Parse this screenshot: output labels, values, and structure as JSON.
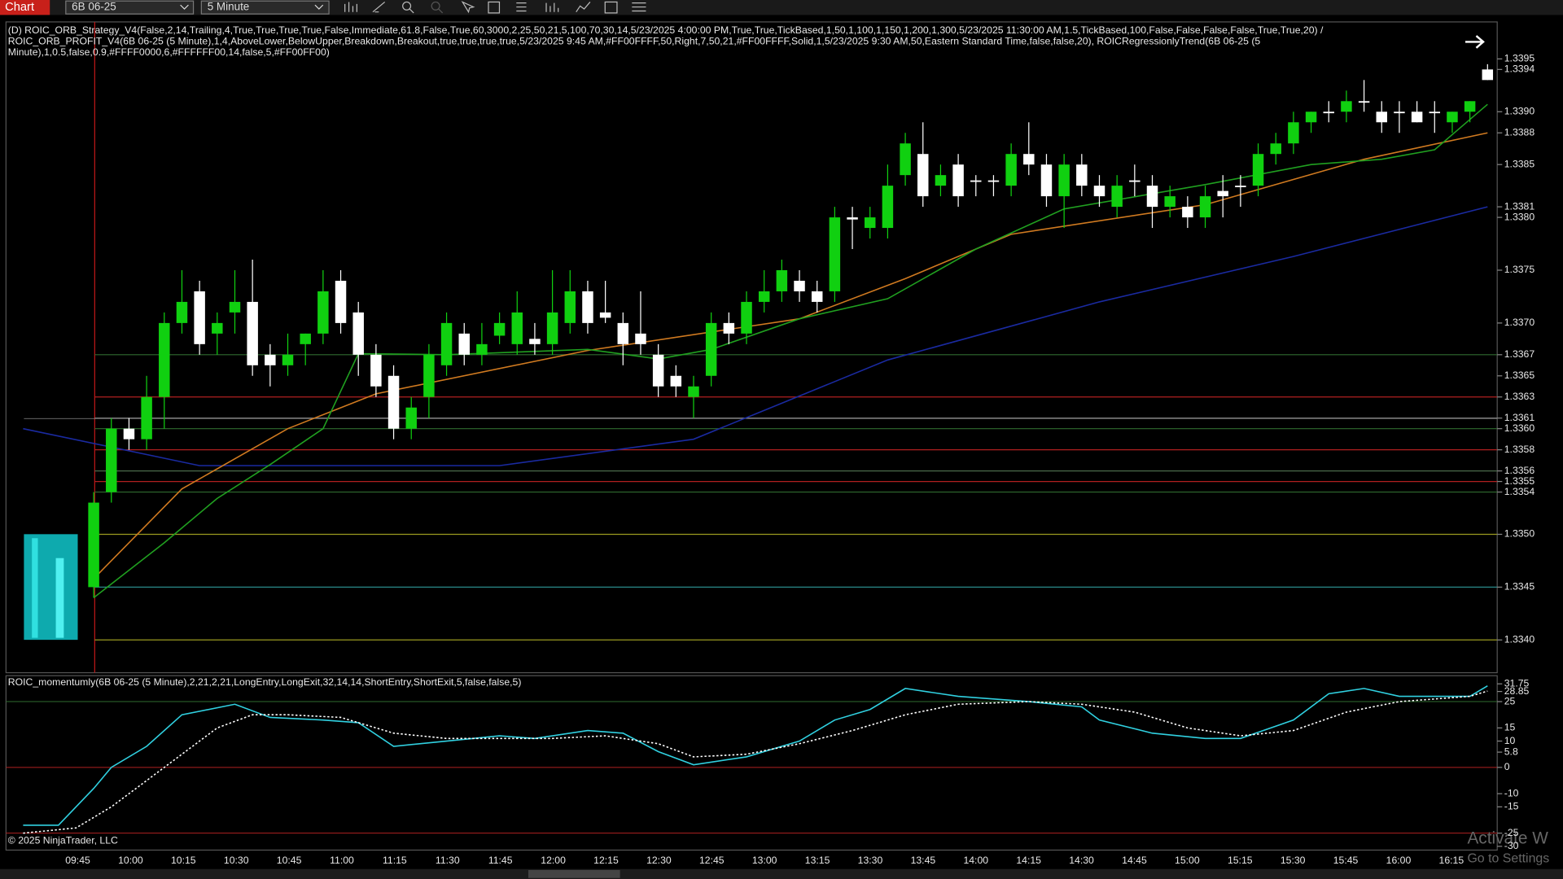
{
  "toolbar": {
    "tab": "Chart",
    "instrument": "6B 06-25",
    "interval": "5 Minute"
  },
  "price_panel": {
    "indicator_lines": [
      "(D) ROIC_ORB_Strategy_V4(False,2,14,Trailing,4,True,True,True,True,False,Immediate,61.8,False,True,60,3000,2,25,50,21,5,100,70,30,14,5/23/2025 4:00:00 PM,True,True,TickBased,1,50,1,100,1,150,1,200,1,300,5/23/2025 11:30:00 AM,1.5,TickBased,100,False,False,False,False,True,True,20) /",
      "ROIC_ORB_PROFIT_V4(6B 06-25 (5 Minute),1,4,AboveLower,BelowUpper,Breakdown,Breakout,true,true,true,true,5/23/2025 9:45 AM,#FF00FFFF,50,Right,7,50,21,#FF00FFFF,Solid,1,5/23/2025 9:30 AM,50,Eastern Standard Time,false,false,20), ROICRegressionlyTrend(6B 06-25 (5",
      "Minute),1,0.5,false,0.9,#FFFF0000,6,#FFFFFF00,14,false,5,#FF00FF00)"
    ],
    "ylim": [
      1.33369,
      1.33985
    ],
    "yticks": [
      1.3395,
      1.3394,
      {
        "value": 1.339,
        "label": "1.3390"
      },
      1.3388,
      1.3385,
      1.3381,
      {
        "value": 1.338,
        "label": "1.3380"
      },
      1.3375,
      {
        "value": 1.337,
        "label": "1.3370"
      },
      1.3367,
      1.3365,
      1.3363,
      1.3361,
      {
        "value": 1.336,
        "label": "1.3360"
      },
      1.3358,
      1.3356,
      1.3355,
      1.3354,
      {
        "value": 1.335,
        "label": "1.3350"
      },
      1.3345,
      {
        "value": 1.334,
        "label": "1.3340"
      }
    ],
    "levels": [
      {
        "value": 1.3367,
        "color": "#2f6b2f"
      },
      {
        "value": 1.3363,
        "color": "#b02020"
      },
      {
        "value": 1.3361,
        "color": "#8a8a8a"
      },
      {
        "value": 1.336,
        "color": "#2f6b2f"
      },
      {
        "value": 1.3358,
        "color": "#b02020"
      },
      {
        "value": 1.3356,
        "color": "#4a6a4a"
      },
      {
        "value": 1.3355,
        "color": "#b02020"
      },
      {
        "value": 1.3354,
        "color": "#2f6b2f"
      },
      {
        "value": 1.335,
        "color": "#9a9a20"
      },
      {
        "value": 1.3345,
        "color": "#2a8a8a"
      },
      {
        "value": 1.334,
        "color": "#9a9a20"
      }
    ],
    "up_color": "#10d010",
    "down_color": "#ffffff",
    "candles": [
      [
        1.3345,
        1.3354,
        1.3344,
        1.3353
      ],
      [
        1.3354,
        1.3361,
        1.3353,
        1.336
      ],
      [
        1.336,
        1.3361,
        1.3358,
        1.3359
      ],
      [
        1.3359,
        1.3365,
        1.3358,
        1.3363
      ],
      [
        1.3363,
        1.3371,
        1.336,
        1.337
      ],
      [
        1.337,
        1.3375,
        1.3369,
        1.3372
      ],
      [
        1.3373,
        1.3374,
        1.3367,
        1.3368
      ],
      [
        1.3369,
        1.3371,
        1.3367,
        1.337
      ],
      [
        1.3371,
        1.3375,
        1.3369,
        1.3372
      ],
      [
        1.3372,
        1.3376,
        1.3365,
        1.3366
      ],
      [
        1.3367,
        1.3368,
        1.3364,
        1.3366
      ],
      [
        1.3366,
        1.3369,
        1.3365,
        1.3367
      ],
      [
        1.3368,
        1.3369,
        1.3366,
        1.3369
      ],
      [
        1.3369,
        1.3375,
        1.3368,
        1.3373
      ],
      [
        1.3374,
        1.3375,
        1.3369,
        1.337
      ],
      [
        1.3371,
        1.3372,
        1.3365,
        1.3367
      ],
      [
        1.3367,
        1.3368,
        1.3363,
        1.3364
      ],
      [
        1.3365,
        1.3366,
        1.3359,
        1.336
      ],
      [
        1.336,
        1.3363,
        1.3359,
        1.3362
      ],
      [
        1.3363,
        1.3368,
        1.3361,
        1.3367
      ],
      [
        1.3366,
        1.3371,
        1.3365,
        1.337
      ],
      [
        1.3369,
        1.337,
        1.3366,
        1.3367
      ],
      [
        1.3367,
        1.337,
        1.3366,
        1.3368
      ],
      [
        1.33688,
        1.3371,
        1.3368,
        1.337
      ],
      [
        1.3368,
        1.3373,
        1.3367,
        1.3371
      ],
      [
        1.33685,
        1.337,
        1.3367,
        1.3368
      ],
      [
        1.3368,
        1.3375,
        1.3367,
        1.3371
      ],
      [
        1.337,
        1.3375,
        1.3369,
        1.3373
      ],
      [
        1.3373,
        1.3374,
        1.3369,
        1.337
      ],
      [
        1.3371,
        1.3374,
        1.337,
        1.33705
      ],
      [
        1.337,
        1.3371,
        1.3366,
        1.3368
      ],
      [
        1.3369,
        1.3373,
        1.3367,
        1.3368
      ],
      [
        1.3367,
        1.3368,
        1.3363,
        1.3364
      ],
      [
        1.3365,
        1.3366,
        1.3363,
        1.3364
      ],
      [
        1.3363,
        1.3365,
        1.3361,
        1.3364
      ],
      [
        1.3365,
        1.3371,
        1.3364,
        1.337
      ],
      [
        1.337,
        1.3371,
        1.3368,
        1.3369
      ],
      [
        1.3369,
        1.3373,
        1.3368,
        1.3372
      ],
      [
        1.3372,
        1.3375,
        1.3371,
        1.3373
      ],
      [
        1.3373,
        1.3376,
        1.3372,
        1.3375
      ],
      [
        1.3374,
        1.3375,
        1.3372,
        1.3373
      ],
      [
        1.3373,
        1.3374,
        1.3371,
        1.3372
      ],
      [
        1.3373,
        1.3381,
        1.3372,
        1.338
      ],
      [
        1.338,
        1.3381,
        1.3377,
        1.33798
      ],
      [
        1.3379,
        1.3381,
        1.3378,
        1.338
      ],
      [
        1.3379,
        1.3385,
        1.3378,
        1.3383
      ],
      [
        1.3384,
        1.3388,
        1.3383,
        1.3387
      ],
      [
        1.3386,
        1.3389,
        1.3381,
        1.3382
      ],
      [
        1.3383,
        1.3385,
        1.3382,
        1.3384
      ],
      [
        1.3385,
        1.3386,
        1.3381,
        1.3382
      ],
      [
        1.33835,
        1.3384,
        1.3382,
        1.33835
      ],
      [
        1.33835,
        1.3384,
        1.3382,
        1.33835
      ],
      [
        1.3383,
        1.3387,
        1.3382,
        1.3386
      ],
      [
        1.3386,
        1.3389,
        1.3384,
        1.3385
      ],
      [
        1.3385,
        1.3386,
        1.3381,
        1.3382
      ],
      [
        1.3382,
        1.3386,
        1.3379,
        1.3385
      ],
      [
        1.3385,
        1.3386,
        1.3382,
        1.3383
      ],
      [
        1.3383,
        1.3384,
        1.3381,
        1.3382
      ],
      [
        1.3381,
        1.3384,
        1.338,
        1.3383
      ],
      [
        1.33835,
        1.3385,
        1.3382,
        1.33835
      ],
      [
        1.3383,
        1.3384,
        1.3379,
        1.3381
      ],
      [
        1.3381,
        1.3383,
        1.338,
        1.3382
      ],
      [
        1.3381,
        1.3382,
        1.3379,
        1.338
      ],
      [
        1.338,
        1.3383,
        1.3379,
        1.3382
      ],
      [
        1.33825,
        1.3384,
        1.338,
        1.3382
      ],
      [
        1.3383,
        1.3384,
        1.3381,
        1.3383
      ],
      [
        1.3383,
        1.3387,
        1.3382,
        1.3386
      ],
      [
        1.3386,
        1.3388,
        1.3385,
        1.3387
      ],
      [
        1.3387,
        1.339,
        1.3386,
        1.3389
      ],
      [
        1.3389,
        1.339,
        1.3388,
        1.339
      ],
      [
        1.339,
        1.3391,
        1.3389,
        1.339
      ],
      [
        1.339,
        1.3392,
        1.3389,
        1.3391
      ],
      [
        1.3391,
        1.3393,
        1.339,
        1.3391
      ],
      [
        1.339,
        1.3391,
        1.3388,
        1.3389
      ],
      [
        1.339,
        1.3391,
        1.3388,
        1.339
      ],
      [
        1.339,
        1.3391,
        1.3389,
        1.3389
      ],
      [
        1.339,
        1.3391,
        1.3388,
        1.339
      ],
      [
        1.3389,
        1.339,
        1.3388,
        1.339
      ],
      [
        1.339,
        1.3391,
        1.3389,
        1.3391
      ],
      [
        1.3394,
        1.33945,
        1.3393,
        1.3393
      ]
    ],
    "moving_averages": [
      {
        "color": "#1a2aa0",
        "x": [
          -4,
          6,
          23,
          34,
          45,
          57,
          68,
          79
        ],
        "values": [
          1.336,
          1.33565,
          1.33565,
          1.3359,
          1.33665,
          1.3372,
          1.33763,
          1.3381
        ]
      },
      {
        "color": "#d07a20",
        "x": [
          0,
          5,
          11,
          16,
          28,
          40,
          46,
          52,
          63,
          72,
          79
        ],
        "values": [
          1.33458,
          1.33543,
          1.336,
          1.33633,
          1.33674,
          1.33704,
          1.33742,
          1.33784,
          1.33812,
          1.33855,
          1.3388
        ]
      },
      {
        "color": "#20a020",
        "x": [
          0,
          4,
          7,
          10,
          13,
          15,
          20,
          28,
          32,
          35,
          40,
          45,
          50,
          55,
          63,
          69,
          73,
          76,
          79
        ],
        "values": [
          1.3344,
          1.33492,
          1.33534,
          1.33566,
          1.336,
          1.33671,
          1.3367,
          1.33675,
          1.33666,
          1.33675,
          1.33704,
          1.33723,
          1.3377,
          1.33808,
          1.33831,
          1.3385,
          1.33855,
          1.33864,
          1.33907
        ]
      }
    ]
  },
  "momentum_panel": {
    "title": "ROIC_momentumly(6B 06-25 (5 Minute),2,21,2,21,LongEntry,LongExit,32,14,14,ShortEntry,ShortExit,5,false,false,5)",
    "ylim": [
      -31.44,
      34.85
    ],
    "yticks": [
      31.75,
      28.85,
      25,
      15,
      10,
      5.8,
      0,
      -10,
      -15,
      -25,
      -30
    ],
    "series": [
      {
        "color": "#30d0e0",
        "x": [
          -4,
          -2,
          0,
          1,
          3,
          5,
          8,
          10,
          13,
          15,
          17,
          20,
          23,
          25,
          28,
          30,
          32,
          34,
          37,
          40,
          42,
          44,
          46,
          49,
          53,
          56,
          57,
          60,
          63,
          65,
          68,
          70,
          72,
          74,
          78,
          79
        ],
        "values": [
          -22,
          -22,
          -8,
          0,
          8,
          20,
          24,
          19,
          18,
          17,
          8,
          10,
          12,
          11,
          14,
          13,
          6,
          1,
          4,
          10,
          18,
          22,
          30,
          27,
          25,
          23,
          18,
          13,
          11,
          11,
          18,
          28,
          30,
          27,
          27,
          31
        ]
      },
      {
        "color": "#ffffff",
        "x": [
          -4,
          -1,
          1,
          3,
          5,
          7,
          9,
          11,
          14,
          17,
          20,
          23,
          26,
          29,
          32,
          34,
          37,
          40,
          43,
          46,
          49,
          53,
          56,
          59,
          62,
          65,
          68,
          71,
          74,
          78,
          79
        ],
        "values": [
          -25,
          -23,
          -15,
          -5,
          5,
          15,
          20,
          20,
          19,
          13,
          11,
          11,
          11,
          12,
          9,
          4,
          5,
          9,
          14,
          20,
          24,
          25,
          24,
          21,
          15,
          12,
          14,
          21,
          25,
          27,
          29
        ]
      }
    ]
  },
  "time_axis": [
    "09:45",
    "10:00",
    "10:15",
    "10:30",
    "10:45",
    "11:00",
    "11:15",
    "11:30",
    "11:45",
    "12:00",
    "12:15",
    "12:30",
    "12:45",
    "13:00",
    "13:15",
    "13:30",
    "13:45",
    "14:00",
    "14:15",
    "14:30",
    "14:45",
    "15:00",
    "15:15",
    "15:30",
    "15:45",
    "16:00",
    "16:15"
  ],
  "copyright": "© 2025 NinjaTrader, LLC",
  "watermark": [
    "Activate W",
    "Go to Settings"
  ]
}
